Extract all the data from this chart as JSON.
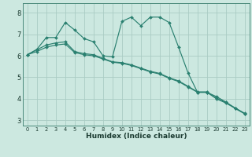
{
  "xlabel": "Humidex (Indice chaleur)",
  "bg_color": "#cce8e0",
  "grid_color": "#aaccc4",
  "line_color": "#2a8070",
  "marker_color": "#2a8070",
  "xlim": [
    -0.5,
    23.5
  ],
  "ylim": [
    2.75,
    8.45
  ],
  "yticks": [
    3,
    4,
    5,
    6,
    7,
    8
  ],
  "xticks": [
    0,
    1,
    2,
    3,
    4,
    5,
    6,
    7,
    8,
    9,
    10,
    11,
    12,
    13,
    14,
    15,
    16,
    17,
    18,
    19,
    20,
    21,
    22,
    23
  ],
  "series1_x": [
    0,
    1,
    2,
    3,
    4,
    5,
    6,
    7,
    8,
    9,
    10,
    11,
    12,
    13,
    14,
    15,
    16,
    17,
    18,
    19,
    20,
    21,
    22,
    23
  ],
  "series1_y": [
    6.05,
    6.3,
    6.85,
    6.85,
    7.55,
    7.2,
    6.8,
    6.65,
    6.0,
    5.95,
    7.6,
    7.8,
    7.4,
    7.8,
    7.8,
    7.55,
    6.4,
    5.2,
    4.3,
    4.3,
    4.1,
    3.85,
    3.55,
    3.3
  ],
  "series2_x": [
    0,
    1,
    2,
    3,
    4,
    5,
    6,
    7,
    8,
    9,
    10,
    11,
    12,
    13,
    14,
    15,
    16,
    17,
    18,
    19,
    20,
    21,
    22,
    23
  ],
  "series2_y": [
    6.05,
    6.2,
    6.4,
    6.5,
    6.55,
    6.15,
    6.05,
    6.0,
    5.85,
    5.7,
    5.65,
    5.55,
    5.4,
    5.25,
    5.15,
    4.95,
    4.8,
    4.55,
    4.3,
    4.3,
    4.0,
    3.8,
    3.55,
    3.3
  ],
  "series3_x": [
    0,
    1,
    2,
    3,
    4,
    5,
    6,
    7,
    8,
    9,
    10,
    11,
    12,
    13,
    14,
    15,
    16,
    17,
    18,
    19,
    20,
    21,
    22,
    23
  ],
  "series3_y": [
    6.05,
    6.28,
    6.5,
    6.6,
    6.65,
    6.2,
    6.1,
    6.05,
    5.88,
    5.72,
    5.68,
    5.58,
    5.43,
    5.28,
    5.18,
    4.98,
    4.83,
    4.58,
    4.32,
    4.32,
    4.02,
    3.83,
    3.57,
    3.32
  ]
}
